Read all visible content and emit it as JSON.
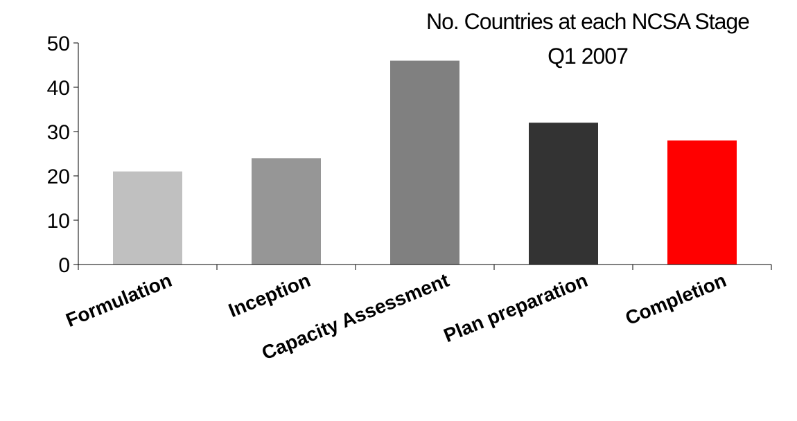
{
  "chart_data": {
    "type": "bar",
    "title": "No. Countries at each NCSA Stage",
    "subtitle": "Q1 2007",
    "categories": [
      "Formulation",
      "Inception",
      "Capacity Assessment",
      "Plan preparation",
      "Completion"
    ],
    "values": [
      21,
      24,
      46,
      32,
      28
    ],
    "colors": [
      "#c0c0c0",
      "#969696",
      "#808080",
      "#333333",
      "#ff0000"
    ],
    "ylim": [
      0,
      50
    ],
    "yticks": [
      0,
      10,
      20,
      30,
      40,
      50
    ],
    "grid": false,
    "legend": "none",
    "xlabel": "",
    "ylabel": ""
  }
}
